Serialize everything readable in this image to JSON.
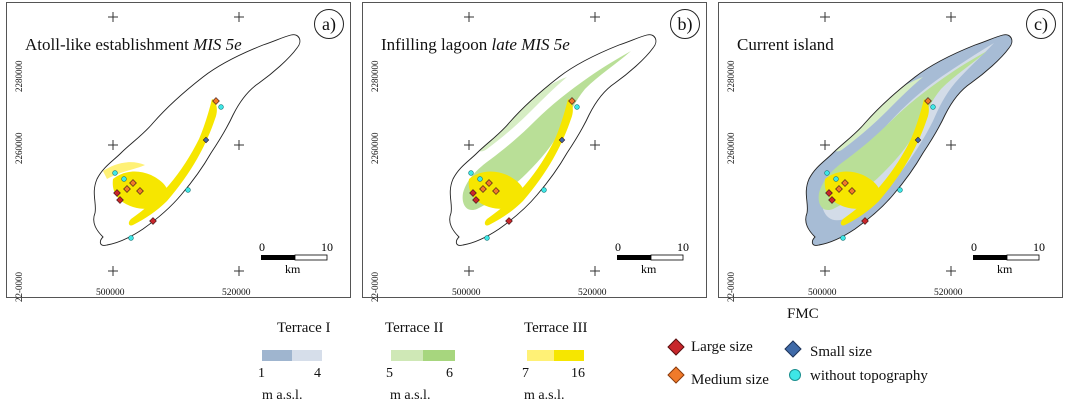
{
  "panels": [
    {
      "id": "a",
      "label": "a)",
      "title_plain": "Atoll-like establishment ",
      "title_italic": "MIS 5e",
      "stage": "a"
    },
    {
      "id": "b",
      "label": "b)",
      "title_plain": "Infilling lagoon ",
      "title_italic": "late MIS 5e",
      "stage": "b"
    },
    {
      "id": "c",
      "label": "c)",
      "title_plain": "Current island",
      "title_italic": "",
      "stage": "c"
    }
  ],
  "axes": {
    "y_ticks": [
      "2280000",
      "2260000",
      "22-0000"
    ],
    "x_ticks": [
      "500000",
      "520000"
    ]
  },
  "scalebar": {
    "start": "0",
    "end": "10",
    "unit": "km"
  },
  "fmc_label": "FMC",
  "legend": {
    "terrace1": {
      "title": "Terrace I",
      "min": "1",
      "max": "4",
      "unit": "m a.s.l.",
      "colors": [
        "#9fb5cf",
        "#d6deea"
      ]
    },
    "terrace2": {
      "title": "Terrace II",
      "min": "5",
      "max": "6",
      "unit": "m a.s.l.",
      "colors": [
        "#cfe8b6",
        "#a7d67e"
      ]
    },
    "terrace3": {
      "title": "Terrace III",
      "min": "7",
      "max": "16",
      "unit": "m a.s.l.",
      "colors": [
        "#fff176",
        "#f6e600"
      ]
    },
    "symbols": {
      "large": {
        "label": "Large size",
        "color": "#c8262b"
      },
      "medium": {
        "label": "Medium size",
        "color": "#f07a2a"
      },
      "small": {
        "label": "Small size",
        "color": "#3f6aa8"
      },
      "none": {
        "label": "without topography",
        "color": "#3ee6e6"
      }
    }
  }
}
